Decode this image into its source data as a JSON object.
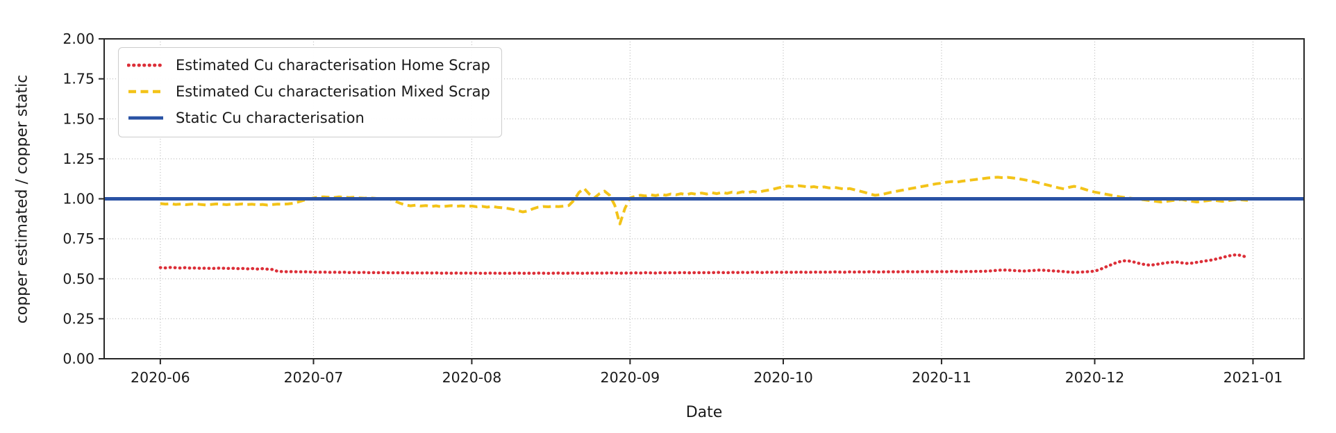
{
  "chart_data": {
    "type": "line",
    "title": "",
    "xlabel": "Date",
    "ylabel": "copper estimated / copper static",
    "ylim": [
      0.0,
      2.0
    ],
    "yticks": [
      0.0,
      0.25,
      0.5,
      0.75,
      1.0,
      1.25,
      1.5,
      1.75,
      2.0
    ],
    "xtick_labels": [
      "2020-06",
      "2020-07",
      "2020-08",
      "2020-09",
      "2020-10",
      "2020-11",
      "2020-12",
      "2021-01"
    ],
    "x_start_date": "2020-06-01",
    "x_frequency": "daily",
    "xlim": [
      "2020-05-21",
      "2021-01-11"
    ],
    "grid": true,
    "legend_position": "upper-left",
    "series": [
      {
        "name": "Estimated Cu characterisation Home Scrap",
        "color": "#dc2f38",
        "style": "dotted",
        "values": [
          0.57,
          0.568,
          0.571,
          0.569,
          0.567,
          0.57,
          0.566,
          0.568,
          0.565,
          0.567,
          0.564,
          0.566,
          0.567,
          0.564,
          0.566,
          0.563,
          0.565,
          0.562,
          0.564,
          0.561,
          0.563,
          0.56,
          0.558,
          0.546,
          0.545,
          0.544,
          0.545,
          0.543,
          0.544,
          0.543,
          0.542,
          0.541,
          0.542,
          0.54,
          0.541,
          0.54,
          0.541,
          0.539,
          0.54,
          0.539,
          0.54,
          0.538,
          0.539,
          0.538,
          0.539,
          0.537,
          0.538,
          0.537,
          0.538,
          0.536,
          0.537,
          0.536,
          0.537,
          0.536,
          0.537,
          0.535,
          0.536,
          0.535,
          0.536,
          0.535,
          0.536,
          0.535,
          0.536,
          0.534,
          0.535,
          0.536,
          0.534,
          0.535,
          0.534,
          0.535,
          0.536,
          0.534,
          0.535,
          0.534,
          0.536,
          0.535,
          0.534,
          0.535,
          0.536,
          0.534,
          0.535,
          0.536,
          0.535,
          0.534,
          0.536,
          0.535,
          0.536,
          0.535,
          0.537,
          0.536,
          0.535,
          0.536,
          0.536,
          0.537,
          0.536,
          0.538,
          0.537,
          0.536,
          0.538,
          0.537,
          0.538,
          0.537,
          0.539,
          0.538,
          0.537,
          0.539,
          0.538,
          0.539,
          0.538,
          0.54,
          0.539,
          0.538,
          0.54,
          0.539,
          0.54,
          0.539,
          0.541,
          0.54,
          0.539,
          0.541,
          0.54,
          0.541,
          0.54,
          0.541,
          0.54,
          0.542,
          0.541,
          0.54,
          0.542,
          0.541,
          0.542,
          0.541,
          0.543,
          0.542,
          0.541,
          0.543,
          0.542,
          0.543,
          0.542,
          0.544,
          0.543,
          0.542,
          0.544,
          0.543,
          0.544,
          0.543,
          0.545,
          0.544,
          0.543,
          0.545,
          0.544,
          0.545,
          0.544,
          0.545,
          0.544,
          0.546,
          0.545,
          0.544,
          0.546,
          0.545,
          0.547,
          0.546,
          0.548,
          0.55,
          0.553,
          0.555,
          0.554,
          0.552,
          0.55,
          0.548,
          0.55,
          0.552,
          0.554,
          0.553,
          0.551,
          0.549,
          0.547,
          0.545,
          0.542,
          0.54,
          0.541,
          0.543,
          0.545,
          0.548,
          0.558,
          0.572,
          0.585,
          0.598,
          0.608,
          0.613,
          0.61,
          0.602,
          0.594,
          0.588,
          0.585,
          0.59,
          0.595,
          0.6,
          0.603,
          0.605,
          0.6,
          0.596,
          0.598,
          0.603,
          0.608,
          0.613,
          0.618,
          0.625,
          0.633,
          0.641,
          0.648,
          0.65,
          0.643,
          0.632
        ]
      },
      {
        "name": "Estimated Cu characterisation Mixed Scrap",
        "color": "#f3c318",
        "style": "dashed",
        "values": [
          0.97,
          0.967,
          0.969,
          0.965,
          0.967,
          0.963,
          0.966,
          0.968,
          0.964,
          0.961,
          0.965,
          0.968,
          0.966,
          0.963,
          0.967,
          0.965,
          0.968,
          0.964,
          0.966,
          0.962,
          0.965,
          0.961,
          0.964,
          0.967,
          0.966,
          0.968,
          0.972,
          0.98,
          0.99,
          0.998,
          1.005,
          1.01,
          1.012,
          1.01,
          1.008,
          1.012,
          1.01,
          1.008,
          1.01,
          1.006,
          1.004,
          1.006,
          1.003,
          1.0,
          1.002,
          0.998,
          0.985,
          0.972,
          0.962,
          0.956,
          0.96,
          0.955,
          0.958,
          0.952,
          0.956,
          0.95,
          0.954,
          0.957,
          0.953,
          0.956,
          0.952,
          0.955,
          0.95,
          0.953,
          0.948,
          0.952,
          0.947,
          0.944,
          0.94,
          0.934,
          0.926,
          0.918,
          0.924,
          0.938,
          0.948,
          0.952,
          0.95,
          0.953,
          0.951,
          0.954,
          0.958,
          0.99,
          1.04,
          1.065,
          1.03,
          1.005,
          1.032,
          1.048,
          1.022,
          0.96,
          0.843,
          0.94,
          1.005,
          1.015,
          1.022,
          1.018,
          1.025,
          1.02,
          1.028,
          1.022,
          1.03,
          1.025,
          1.032,
          1.026,
          1.034,
          1.028,
          1.036,
          1.03,
          1.038,
          1.032,
          1.04,
          1.034,
          1.042,
          1.036,
          1.044,
          1.038,
          1.046,
          1.04,
          1.048,
          1.054,
          1.06,
          1.068,
          1.075,
          1.08,
          1.076,
          1.082,
          1.078,
          1.072,
          1.076,
          1.07,
          1.074,
          1.068,
          1.072,
          1.066,
          1.06,
          1.064,
          1.056,
          1.048,
          1.04,
          1.03,
          1.022,
          1.026,
          1.032,
          1.04,
          1.046,
          1.052,
          1.058,
          1.064,
          1.07,
          1.076,
          1.082,
          1.088,
          1.094,
          1.098,
          1.104,
          1.108,
          1.104,
          1.11,
          1.114,
          1.118,
          1.122,
          1.126,
          1.13,
          1.133,
          1.135,
          1.132,
          1.134,
          1.13,
          1.126,
          1.12,
          1.114,
          1.108,
          1.1,
          1.092,
          1.084,
          1.076,
          1.068,
          1.062,
          1.072,
          1.078,
          1.07,
          1.06,
          1.05,
          1.042,
          1.036,
          1.03,
          1.024,
          1.018,
          1.012,
          1.008,
          1.004,
          1.0,
          0.996,
          0.992,
          0.988,
          0.984,
          0.98,
          0.984,
          0.988,
          0.992,
          0.996,
          0.99,
          0.985,
          0.98,
          0.984,
          0.988,
          0.992,
          0.988,
          0.984,
          0.988,
          0.992,
          0.996,
          0.993,
          0.99
        ]
      },
      {
        "name": "Static Cu characterisation",
        "color": "#2a52a4",
        "style": "solid",
        "constant": 1.0
      }
    ]
  },
  "colors": {
    "grid": "#bdbdbd",
    "spine": "#262626",
    "tick_label": "#1a1a1a"
  }
}
